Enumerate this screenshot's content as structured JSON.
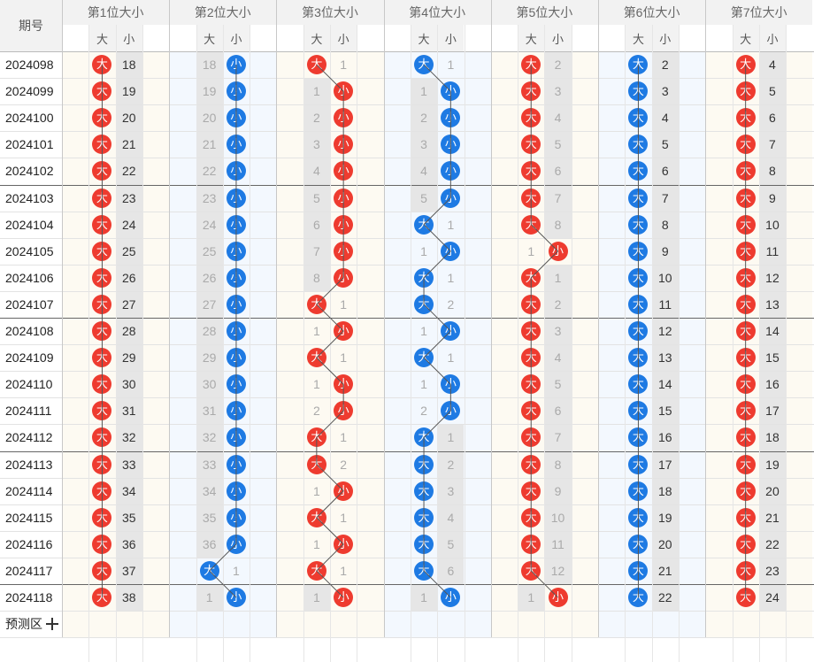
{
  "header": {
    "issue_label": "期号",
    "sub_big": "大",
    "sub_small": "小",
    "groups": [
      "第1位大小",
      "第2位大小",
      "第3位大小",
      "第4位大小",
      "第5位大小",
      "第6位大小",
      "第7位大小"
    ]
  },
  "rows": [
    {
      "issue": "2024098",
      "c": [
        [
          "big",
          18
        ],
        [
          "small",
          18
        ],
        [
          "big",
          1
        ],
        [
          "big",
          1
        ],
        [
          "big",
          2
        ],
        [
          "big",
          2
        ],
        [
          "big",
          4
        ]
      ]
    },
    {
      "issue": "2024099",
      "c": [
        [
          "big",
          19
        ],
        [
          "small",
          19
        ],
        [
          "small",
          1
        ],
        [
          "small",
          1
        ],
        [
          "big",
          3
        ],
        [
          "big",
          3
        ],
        [
          "big",
          5
        ]
      ]
    },
    {
      "issue": "2024100",
      "c": [
        [
          "big",
          20
        ],
        [
          "small",
          20
        ],
        [
          "small",
          2
        ],
        [
          "small",
          2
        ],
        [
          "big",
          4
        ],
        [
          "big",
          4
        ],
        [
          "big",
          6
        ]
      ]
    },
    {
      "issue": "2024101",
      "c": [
        [
          "big",
          21
        ],
        [
          "small",
          21
        ],
        [
          "small",
          3
        ],
        [
          "small",
          3
        ],
        [
          "big",
          5
        ],
        [
          "big",
          5
        ],
        [
          "big",
          7
        ]
      ]
    },
    {
      "issue": "2024102",
      "c": [
        [
          "big",
          22
        ],
        [
          "small",
          22
        ],
        [
          "small",
          4
        ],
        [
          "small",
          4
        ],
        [
          "big",
          6
        ],
        [
          "big",
          6
        ],
        [
          "big",
          8
        ]
      ]
    },
    {
      "issue": "2024103",
      "c": [
        [
          "big",
          23
        ],
        [
          "small",
          23
        ],
        [
          "small",
          5
        ],
        [
          "small",
          5
        ],
        [
          "big",
          7
        ],
        [
          "big",
          7
        ],
        [
          "big",
          9
        ]
      ]
    },
    {
      "issue": "2024104",
      "c": [
        [
          "big",
          24
        ],
        [
          "small",
          24
        ],
        [
          "small",
          6
        ],
        [
          "big",
          1
        ],
        [
          "big",
          8
        ],
        [
          "big",
          8
        ],
        [
          "big",
          10
        ]
      ]
    },
    {
      "issue": "2024105",
      "c": [
        [
          "big",
          25
        ],
        [
          "small",
          25
        ],
        [
          "small",
          7
        ],
        [
          "small",
          1
        ],
        [
          "small",
          1
        ],
        [
          "big",
          9
        ],
        [
          "big",
          11
        ]
      ]
    },
    {
      "issue": "2024106",
      "c": [
        [
          "big",
          26
        ],
        [
          "small",
          26
        ],
        [
          "small",
          8
        ],
        [
          "big",
          1
        ],
        [
          "big",
          1
        ],
        [
          "big",
          10
        ],
        [
          "big",
          12
        ]
      ]
    },
    {
      "issue": "2024107",
      "c": [
        [
          "big",
          27
        ],
        [
          "small",
          27
        ],
        [
          "big",
          1
        ],
        [
          "big",
          2
        ],
        [
          "big",
          2
        ],
        [
          "big",
          11
        ],
        [
          "big",
          13
        ]
      ]
    },
    {
      "issue": "2024108",
      "c": [
        [
          "big",
          28
        ],
        [
          "small",
          28
        ],
        [
          "small",
          1
        ],
        [
          "small",
          1
        ],
        [
          "big",
          3
        ],
        [
          "big",
          12
        ],
        [
          "big",
          14
        ]
      ]
    },
    {
      "issue": "2024109",
      "c": [
        [
          "big",
          29
        ],
        [
          "small",
          29
        ],
        [
          "big",
          1
        ],
        [
          "big",
          1
        ],
        [
          "big",
          4
        ],
        [
          "big",
          13
        ],
        [
          "big",
          15
        ]
      ]
    },
    {
      "issue": "2024110",
      "c": [
        [
          "big",
          30
        ],
        [
          "small",
          30
        ],
        [
          "small",
          1
        ],
        [
          "small",
          1
        ],
        [
          "big",
          5
        ],
        [
          "big",
          14
        ],
        [
          "big",
          16
        ]
      ]
    },
    {
      "issue": "2024111",
      "c": [
        [
          "big",
          31
        ],
        [
          "small",
          31
        ],
        [
          "small",
          2
        ],
        [
          "small",
          2
        ],
        [
          "big",
          6
        ],
        [
          "big",
          15
        ],
        [
          "big",
          17
        ]
      ]
    },
    {
      "issue": "2024112",
      "c": [
        [
          "big",
          32
        ],
        [
          "small",
          32
        ],
        [
          "big",
          1
        ],
        [
          "big",
          1
        ],
        [
          "big",
          7
        ],
        [
          "big",
          16
        ],
        [
          "big",
          18
        ]
      ]
    },
    {
      "issue": "2024113",
      "c": [
        [
          "big",
          33
        ],
        [
          "small",
          33
        ],
        [
          "big",
          2
        ],
        [
          "big",
          2
        ],
        [
          "big",
          8
        ],
        [
          "big",
          17
        ],
        [
          "big",
          19
        ]
      ]
    },
    {
      "issue": "2024114",
      "c": [
        [
          "big",
          34
        ],
        [
          "small",
          34
        ],
        [
          "small",
          1
        ],
        [
          "big",
          3
        ],
        [
          "big",
          9
        ],
        [
          "big",
          18
        ],
        [
          "big",
          20
        ]
      ]
    },
    {
      "issue": "2024115",
      "c": [
        [
          "big",
          35
        ],
        [
          "small",
          35
        ],
        [
          "big",
          1
        ],
        [
          "big",
          4
        ],
        [
          "big",
          10
        ],
        [
          "big",
          19
        ],
        [
          "big",
          21
        ]
      ]
    },
    {
      "issue": "2024116",
      "c": [
        [
          "big",
          36
        ],
        [
          "small",
          36
        ],
        [
          "small",
          1
        ],
        [
          "big",
          5
        ],
        [
          "big",
          11
        ],
        [
          "big",
          20
        ],
        [
          "big",
          22
        ]
      ]
    },
    {
      "issue": "2024117",
      "c": [
        [
          "big",
          37
        ],
        [
          "big",
          1
        ],
        [
          "big",
          1
        ],
        [
          "big",
          6
        ],
        [
          "big",
          12
        ],
        [
          "big",
          21
        ],
        [
          "big",
          23
        ]
      ]
    },
    {
      "issue": "2024118",
      "c": [
        [
          "big",
          38
        ],
        [
          "small",
          1
        ],
        [
          "small",
          1
        ],
        [
          "small",
          1
        ],
        [
          "small",
          1
        ],
        [
          "big",
          22
        ],
        [
          "big",
          24
        ]
      ]
    }
  ],
  "footer": {
    "predict_label": "预测区"
  },
  "colors": {
    "red_ball": "#ee3b2f",
    "blue_ball": "#1e7ae3",
    "odd_group_bg": "#fdfaf2",
    "even_group_bg": "#f3f8fe",
    "miss_column_bg": "#e6e6e6"
  }
}
